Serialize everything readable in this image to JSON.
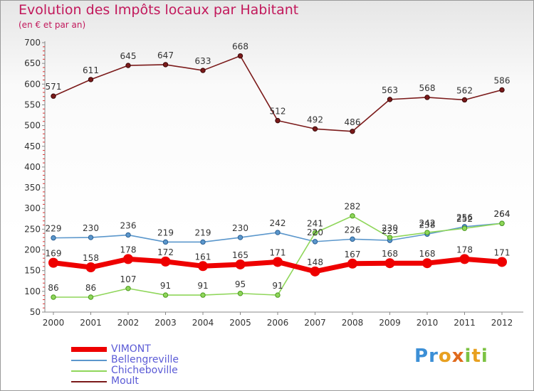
{
  "header": {
    "title": "Evolution des Impôts locaux par Habitant",
    "subtitle": "(en € et par an)"
  },
  "logo": {
    "text": "Proxiti"
  },
  "chart_data": {
    "type": "line",
    "title": "Evolution des Impôts locaux par Habitant",
    "subtitle": "(en € et par an)",
    "xlabel": "",
    "ylabel": "",
    "categories": [
      "2000",
      "2001",
      "2002",
      "2003",
      "2004",
      "2005",
      "2006",
      "2007",
      "2008",
      "2009",
      "2010",
      "2011",
      "2012"
    ],
    "ylim": [
      50,
      700
    ],
    "yticks": [
      50,
      100,
      150,
      200,
      250,
      300,
      350,
      400,
      450,
      500,
      550,
      600,
      650,
      700
    ],
    "grid": false,
    "legend_position": "bottom-left",
    "series": [
      {
        "name": "Moult",
        "color": "#7b1a1a",
        "values": [
          571,
          611,
          645,
          647,
          633,
          668,
          512,
          492,
          486,
          563,
          568,
          562,
          586
        ]
      },
      {
        "name": "Bellengreville",
        "color": "#5b97cc",
        "values": [
          229,
          230,
          236,
          219,
          219,
          230,
          242,
          220,
          226,
          223,
          238,
          256,
          264
        ]
      },
      {
        "name": "Chicheboville",
        "color": "#8fd65a",
        "values": [
          86,
          86,
          107,
          91,
          91,
          95,
          91,
          241,
          282,
          230,
          242,
          252,
          264
        ]
      },
      {
        "name": "VIMONT",
        "color": "#ee0000",
        "values": [
          169,
          158,
          178,
          172,
          161,
          165,
          171,
          148,
          167,
          168,
          168,
          178,
          171
        ]
      }
    ],
    "legend_order": [
      "VIMONT",
      "Bellengreville",
      "Chicheboville",
      "Moult"
    ]
  }
}
